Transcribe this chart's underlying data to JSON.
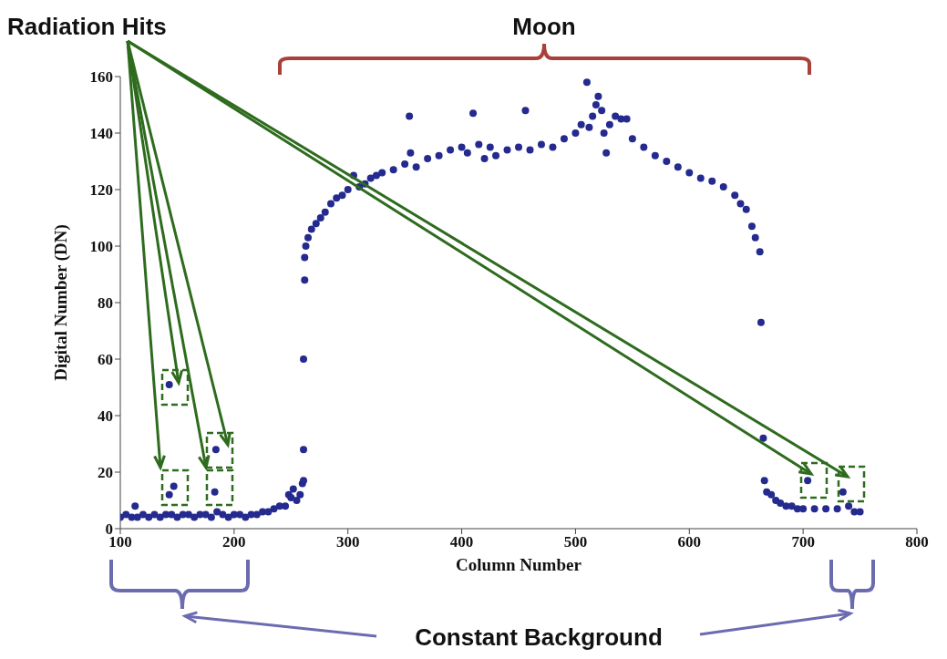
{
  "chart_data": {
    "type": "scatter",
    "xlabel": "Column Number",
    "ylabel": "Digital Number (DN)",
    "annotations": [
      "Radiation Hits",
      "Moon",
      "Constant Background"
    ],
    "x": [
      100,
      105,
      110,
      113,
      115,
      120,
      125,
      130,
      135,
      140,
      145,
      150,
      155,
      160,
      165,
      170,
      175,
      180,
      185,
      190,
      195,
      200,
      205,
      210,
      215,
      220,
      225,
      230,
      235,
      240,
      245,
      248,
      250,
      252,
      255,
      258,
      260,
      261,
      261,
      261,
      262,
      262,
      263,
      265,
      268,
      272,
      276,
      280,
      285,
      290,
      295,
      300,
      305,
      310,
      315,
      320,
      325,
      330,
      340,
      350,
      354,
      355,
      360,
      370,
      380,
      390,
      400,
      405,
      410,
      415,
      420,
      425,
      430,
      440,
      450,
      456,
      460,
      470,
      480,
      490,
      500,
      505,
      510,
      512,
      515,
      518,
      520,
      523,
      525,
      527,
      530,
      535,
      540,
      545,
      550,
      560,
      570,
      580,
      590,
      600,
      610,
      620,
      630,
      640,
      645,
      650,
      655,
      658,
      662,
      663,
      665,
      666,
      668,
      672,
      676,
      680,
      685,
      690,
      695,
      700,
      704,
      710,
      720,
      730,
      735,
      740,
      745,
      750,
      143,
      147,
      143,
      184,
      183
    ],
    "values": [
      4,
      5,
      4,
      8,
      4,
      5,
      4,
      5,
      4,
      5,
      5,
      4,
      5,
      5,
      4,
      5,
      5,
      4,
      6,
      5,
      4,
      5,
      5,
      4,
      5,
      5,
      6,
      6,
      7,
      8,
      8,
      12,
      11,
      14,
      10,
      12,
      16,
      17,
      28,
      60,
      88,
      96,
      100,
      103,
      106,
      108,
      110,
      112,
      115,
      117,
      118,
      120,
      125,
      121,
      122,
      124,
      125,
      126,
      127,
      129,
      146,
      133,
      128,
      131,
      132,
      134,
      135,
      133,
      147,
      136,
      131,
      135,
      132,
      134,
      135,
      148,
      134,
      136,
      135,
      138,
      140,
      143,
      158,
      142,
      146,
      150,
      153,
      148,
      140,
      133,
      143,
      146,
      145,
      145,
      138,
      135,
      132,
      130,
      128,
      126,
      124,
      123,
      121,
      118,
      115,
      113,
      107,
      103,
      98,
      73,
      32,
      17,
      13,
      12,
      10,
      9,
      8,
      8,
      7,
      7,
      17,
      7,
      7,
      7,
      13,
      8,
      6,
      6,
      51,
      15,
      12,
      28,
      13
    ],
    "color": "#242a8e",
    "marker": "circle",
    "xlim": [
      100,
      800
    ],
    "xticks": [
      100,
      200,
      300,
      400,
      500,
      600,
      700,
      800
    ],
    "ylim": [
      0,
      160
    ],
    "yticks": [
      0,
      20,
      40,
      60,
      80,
      100,
      120,
      140,
      160
    ],
    "grid": false,
    "legend": false
  }
}
